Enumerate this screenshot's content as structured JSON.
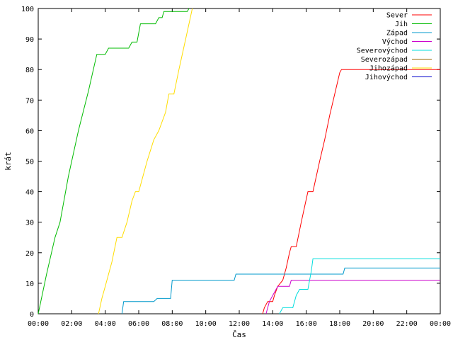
{
  "chart_data": {
    "type": "line",
    "xlabel": "Čas",
    "ylabel": "krát",
    "xlim": [
      0,
      24
    ],
    "ylim": [
      0,
      100
    ],
    "xticks": [
      0,
      2,
      4,
      6,
      8,
      10,
      12,
      14,
      16,
      18,
      20,
      22,
      24
    ],
    "xtick_labels": [
      "00:00",
      "02:00",
      "04:00",
      "06:00",
      "08:00",
      "10:00",
      "12:00",
      "14:00",
      "16:00",
      "18:00",
      "20:00",
      "22:00",
      "00:00"
    ],
    "yticks": [
      0,
      10,
      20,
      30,
      40,
      50,
      60,
      70,
      80,
      90,
      100
    ],
    "grid": false,
    "legend_position": "top-right",
    "series": [
      {
        "name": "Sever",
        "color": "#ff0000",
        "points": [
          [
            13.4,
            0
          ],
          [
            13.5,
            2
          ],
          [
            13.7,
            4
          ],
          [
            14.0,
            4
          ],
          [
            14.1,
            6
          ],
          [
            14.3,
            9
          ],
          [
            14.6,
            11
          ],
          [
            14.8,
            15
          ],
          [
            15.0,
            20
          ],
          [
            15.1,
            22
          ],
          [
            15.4,
            22
          ],
          [
            15.7,
            30
          ],
          [
            15.9,
            35
          ],
          [
            16.1,
            40
          ],
          [
            16.4,
            40
          ],
          [
            16.8,
            50
          ],
          [
            17.1,
            57
          ],
          [
            17.4,
            65
          ],
          [
            17.7,
            72
          ],
          [
            18.0,
            79
          ],
          [
            18.1,
            80
          ],
          [
            24,
            80
          ]
        ]
      },
      {
        "name": "Jih",
        "color": "#00bb00",
        "points": [
          [
            0,
            0
          ],
          [
            0.5,
            13
          ],
          [
            1.0,
            25
          ],
          [
            1.3,
            30
          ],
          [
            1.8,
            45
          ],
          [
            2.4,
            60
          ],
          [
            3.0,
            73
          ],
          [
            3.5,
            85
          ],
          [
            4.0,
            85
          ],
          [
            4.2,
            87
          ],
          [
            5.4,
            87
          ],
          [
            5.6,
            89
          ],
          [
            5.9,
            89
          ],
          [
            6.1,
            95
          ],
          [
            7.0,
            95
          ],
          [
            7.2,
            97
          ],
          [
            7.4,
            97
          ],
          [
            7.5,
            99
          ],
          [
            8.9,
            99
          ],
          [
            9.0,
            100
          ]
        ]
      },
      {
        "name": "Západ",
        "color": "#0099cc",
        "points": [
          [
            5.0,
            0
          ],
          [
            5.1,
            4
          ],
          [
            6.9,
            4
          ],
          [
            7.1,
            5
          ],
          [
            7.9,
            5
          ],
          [
            8.0,
            11
          ],
          [
            11.7,
            11
          ],
          [
            11.8,
            13
          ],
          [
            18.2,
            13
          ],
          [
            18.3,
            15
          ],
          [
            24,
            15
          ]
        ]
      },
      {
        "name": "Východ",
        "color": "#cc00cc",
        "points": [
          [
            13.6,
            0
          ],
          [
            13.7,
            2
          ],
          [
            13.8,
            4
          ],
          [
            14.0,
            6
          ],
          [
            14.3,
            9
          ],
          [
            15.0,
            9
          ],
          [
            15.1,
            11
          ],
          [
            24,
            11
          ]
        ]
      },
      {
        "name": "Severovýchod",
        "color": "#00dddd",
        "points": [
          [
            14.4,
            0
          ],
          [
            14.6,
            2
          ],
          [
            15.2,
            2
          ],
          [
            15.4,
            6
          ],
          [
            15.6,
            8
          ],
          [
            16.1,
            8
          ],
          [
            16.3,
            14
          ],
          [
            16.4,
            18
          ],
          [
            24,
            18
          ]
        ]
      },
      {
        "name": "Severozápad",
        "color": "#996600",
        "points": []
      },
      {
        "name": "Jihozápad",
        "color": "#ffdd00",
        "points": [
          [
            3.6,
            0
          ],
          [
            3.8,
            5
          ],
          [
            4.0,
            9
          ],
          [
            4.4,
            17
          ],
          [
            4.7,
            25
          ],
          [
            5.0,
            25
          ],
          [
            5.3,
            30
          ],
          [
            5.6,
            37
          ],
          [
            5.8,
            40
          ],
          [
            6.0,
            40
          ],
          [
            6.5,
            50
          ],
          [
            6.9,
            57
          ],
          [
            7.2,
            60
          ],
          [
            7.6,
            66
          ],
          [
            7.8,
            72
          ],
          [
            8.1,
            72
          ],
          [
            8.4,
            80
          ],
          [
            8.8,
            90
          ],
          [
            9.0,
            95
          ],
          [
            9.2,
            100
          ]
        ]
      },
      {
        "name": "Jihovýchod",
        "color": "#0000cc",
        "points": []
      }
    ]
  }
}
